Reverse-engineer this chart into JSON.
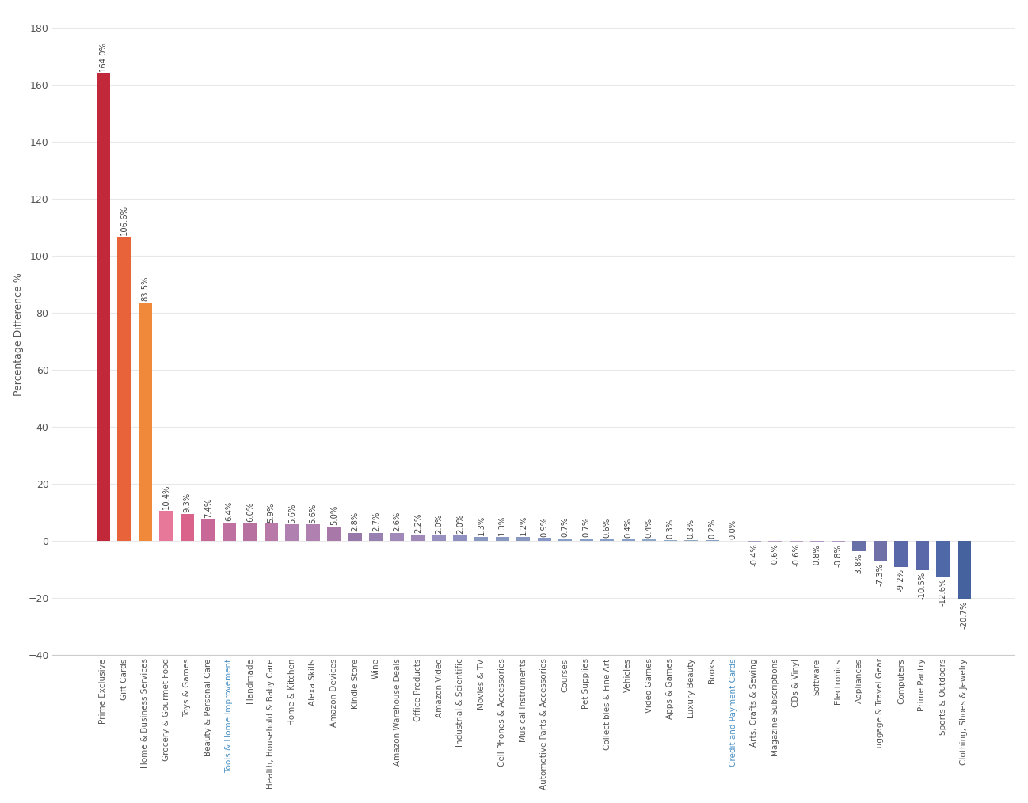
{
  "categories": [
    "Prime Exclusive",
    "Gift Cards",
    "Home & Business Services",
    "Grocery & Gourmet Food",
    "Toys & Games",
    "Beauty & Personal Care",
    "Tools & Home Improvement",
    "Handmade",
    "Health, Household & Baby Care",
    "Home & Kitchen",
    "Alexa Skills",
    "Amazon Devices",
    "Kindle Store",
    "Wine",
    "Amazon Warehouse Deals",
    "Office Products",
    "Amazon Video",
    "Industrial & Scientific",
    "Movies & TV",
    "Cell Phones & Accessories",
    "Musical Instruments",
    "Automotive Parts & Accessories",
    "Courses",
    "Pet Supplies",
    "Collectibles & Fine Art",
    "Vehicles",
    "Video Games",
    "Apps & Games",
    "Luxury Beauty",
    "Books",
    "Credit and Payment Cards",
    "Arts, Crafts & Sewing",
    "Magazine Subscriptions",
    "CDs & Vinyl",
    "Software",
    "Electronics",
    "Appliances",
    "Luggage & Travel Gear",
    "Computers",
    "Prime Pantry",
    "Sports & Outdoors",
    "Clothing, Shoes & Jewelry"
  ],
  "values": [
    164.0,
    106.6,
    83.5,
    10.4,
    9.3,
    7.4,
    6.4,
    6.0,
    5.9,
    5.6,
    5.6,
    5.0,
    2.8,
    2.7,
    2.6,
    2.2,
    2.0,
    2.0,
    1.3,
    1.3,
    1.2,
    0.9,
    0.7,
    0.7,
    0.6,
    0.4,
    0.4,
    0.3,
    0.3,
    0.2,
    0.0,
    -0.4,
    -0.6,
    -0.6,
    -0.8,
    -0.8,
    -3.8,
    -7.3,
    -9.2,
    -10.5,
    -12.6,
    -20.7
  ],
  "bar_colors": [
    "#c1293a",
    "#e8623a",
    "#f0893a",
    "#e8789a",
    "#d9638a",
    "#c96898",
    "#c070a0",
    "#b870a0",
    "#b878a8",
    "#b080b0",
    "#b080b0",
    "#a878a8",
    "#9878a8",
    "#9880b0",
    "#a088b8",
    "#a088b8",
    "#9890c0",
    "#9090c0",
    "#8898c0",
    "#8898c0",
    "#8898c0",
    "#8898c8",
    "#88a0c8",
    "#88a0c8",
    "#88a0c8",
    "#88a0c8",
    "#90a8c8",
    "#90a8c8",
    "#90a8c0",
    "#88a0c8",
    "#90a8c0",
    "#a8a0c0",
    "#b8a0c0",
    "#b8a0c0",
    "#b098c0",
    "#b098c0",
    "#6870a8",
    "#7070a8",
    "#5868a8",
    "#5868a8",
    "#4f68a8",
    "#46629e"
  ],
  "special_blue_labels": [
    "Tools & Home Improvement",
    "Credit and Payment Cards"
  ],
  "special_blue_color": "#4a90c4",
  "ylabel": "Percentage Difference %",
  "ylim": [
    -40,
    185
  ],
  "yticks": [
    -40,
    -20,
    0,
    20,
    40,
    60,
    80,
    100,
    120,
    140,
    160,
    180
  ],
  "background_color": "#ffffff",
  "grid_color": "#e8e8e8",
  "label_fontsize": 7.5,
  "value_fontsize": 7.2,
  "ylabel_fontsize": 9,
  "tick_label_color": "#555555",
  "value_label_color": "#444444"
}
